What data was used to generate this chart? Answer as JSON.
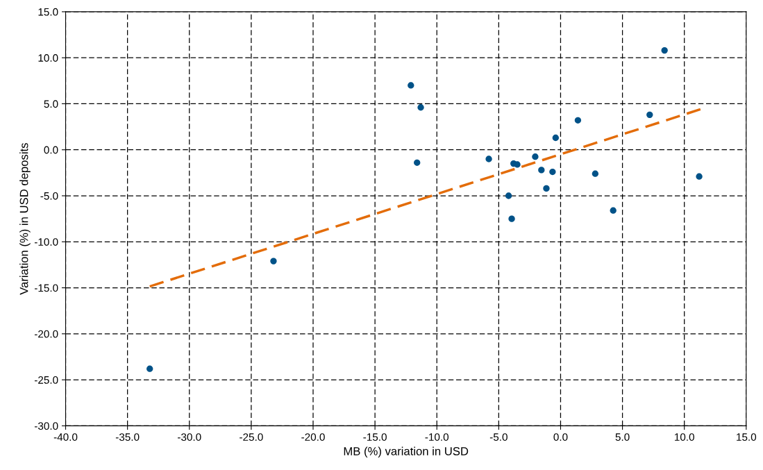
{
  "chart_data": {
    "type": "scatter",
    "xlabel": "MB (%) variation in USD",
    "ylabel": "Variation (%) in USD deposits",
    "xlim": [
      -40,
      15
    ],
    "ylim": [
      -30,
      15
    ],
    "xticks": [
      {
        "value": -40,
        "label": "-40.0"
      },
      {
        "value": -35,
        "label": "-35.0"
      },
      {
        "value": -30,
        "label": "-30.0"
      },
      {
        "value": -25,
        "label": "-25.0"
      },
      {
        "value": -20,
        "label": "-20.0"
      },
      {
        "value": -15,
        "label": "-15.0"
      },
      {
        "value": -10,
        "label": "-10.0"
      },
      {
        "value": -5,
        "label": "-5.0"
      },
      {
        "value": 0,
        "label": "0.0"
      },
      {
        "value": 5,
        "label": "5.0"
      },
      {
        "value": 10,
        "label": "10.0"
      },
      {
        "value": 15,
        "label": "15.0"
      }
    ],
    "yticks": [
      {
        "value": -30,
        "label": "-30.0"
      },
      {
        "value": -25,
        "label": "-25.0"
      },
      {
        "value": -20,
        "label": "-20.0"
      },
      {
        "value": -15,
        "label": "-15.0"
      },
      {
        "value": -10,
        "label": "-10.0"
      },
      {
        "value": -5,
        "label": "-5.0"
      },
      {
        "value": 0,
        "label": "0.0"
      },
      {
        "value": 5,
        "label": "5.0"
      },
      {
        "value": 10,
        "label": "10.0"
      },
      {
        "value": 15,
        "label": "15.0"
      }
    ],
    "grid": true,
    "line_style": "dashed",
    "marker": "circle",
    "series": [
      {
        "color": "#005288",
        "x": [
          -33.2,
          -23.2,
          -12.1,
          -11.3,
          -11.6,
          -5.8,
          -4.2,
          -3.95,
          -3.8,
          -3.5,
          -2.05,
          -1.55,
          -1.15,
          -0.65,
          -0.4,
          1.4,
          2.8,
          4.25,
          7.2,
          8.4,
          11.2
        ],
        "values": [
          -23.8,
          -12.1,
          7.0,
          4.6,
          -1.4,
          -1.0,
          -5.0,
          -7.5,
          -1.5,
          -1.6,
          -0.75,
          -2.2,
          -4.2,
          -2.4,
          1.3,
          3.2,
          -2.6,
          -6.6,
          3.8,
          10.8,
          -2.9
        ]
      },
      {
        "type": "line",
        "color": "#e36c09",
        "line_style": "dashed",
        "marker": "none",
        "x": [
          -33.2,
          11.3
        ],
        "values": [
          -14.85,
          4.4
        ]
      }
    ]
  }
}
